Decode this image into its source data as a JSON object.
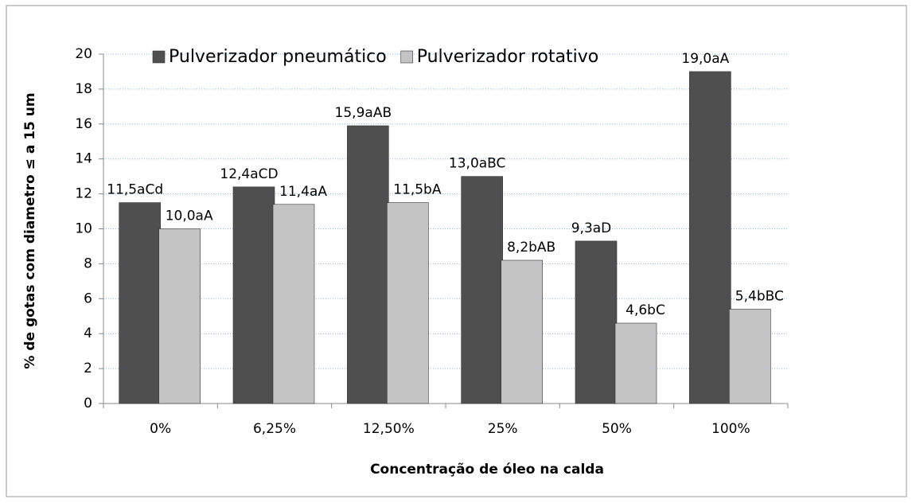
{
  "chart_data": {
    "type": "bar",
    "categories": [
      "0%",
      "6,25%",
      "12,50%",
      "25%",
      "50%",
      "100%"
    ],
    "series": [
      {
        "name": "Pulverizador pneumático",
        "color": "#4f4f4f",
        "values": [
          11.5,
          12.4,
          15.9,
          13.0,
          9.3,
          19.0
        ],
        "value_labels": [
          "11,5aCd",
          "12,4aCD",
          "15,9aAB",
          "13,0aBC",
          "9,3aD",
          "19,0aA"
        ]
      },
      {
        "name": "Pulverizador rotativo",
        "color": "#c4c4c4",
        "values": [
          10.0,
          11.4,
          11.5,
          8.2,
          4.6,
          5.4
        ],
        "value_labels": [
          "10,0aA",
          "11,4aA",
          "11,5bA",
          "8,2bAB",
          "4,6bC",
          "5,4bBC"
        ]
      }
    ],
    "ylabel": "% de gotas com diametro ≤ a 15 um",
    "xlabel": "Concentração de óleo na calda",
    "ylim": [
      0,
      20
    ],
    "yticks": [
      0,
      2,
      4,
      6,
      8,
      10,
      12,
      14,
      16,
      18,
      20
    ],
    "grid": true,
    "legend": "top"
  }
}
